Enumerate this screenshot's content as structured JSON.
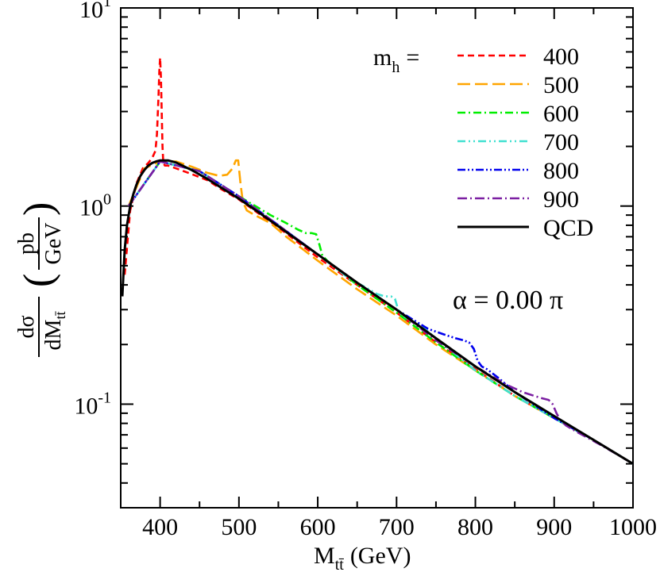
{
  "chart_data": {
    "type": "line",
    "title": "",
    "xlabel": {
      "main": "M",
      "sub": "tt̄",
      "unit": "(GeV)"
    },
    "ylabel": {
      "frac_num": "dσ",
      "frac_den_main": "dM",
      "frac_den_sub": "tt̄",
      "unit_num": "pb",
      "unit_den": "GeV"
    },
    "xlim": [
      350,
      1000
    ],
    "ylim": [
      0.03,
      10
    ],
    "yscale": "log",
    "grid": false,
    "xticks": [
      400,
      500,
      600,
      700,
      800,
      900,
      1000
    ],
    "xtick_labels": [
      "400",
      "500",
      "600",
      "700",
      "800",
      "900",
      "1000"
    ],
    "yticks": [
      {
        "value": 10,
        "base": "10",
        "exp": "1"
      },
      {
        "value": 1,
        "base": "10",
        "exp": "0"
      },
      {
        "value": 0.1,
        "base": "10",
        "exp": "-1"
      }
    ],
    "legend": {
      "placement": "top-right",
      "title_main": "m",
      "title_sub": "h",
      "title_suffix": "="
    },
    "annotation": "α = 0.00 π",
    "series": [
      {
        "name": "400",
        "color": "#ff0000",
        "dash": "8,5",
        "x": [
          355,
          362,
          370,
          378,
          385,
          390,
          394,
          396,
          398,
          399,
          400,
          401,
          402,
          403,
          404,
          406,
          410,
          420,
          440,
          460,
          480,
          500,
          550,
          600,
          650,
          700,
          750,
          800,
          850,
          900,
          950,
          1000
        ],
        "y": [
          0.45,
          0.95,
          1.3,
          1.55,
          1.65,
          1.75,
          1.9,
          2.3,
          3.6,
          4.8,
          5.6,
          4.5,
          3.0,
          2.0,
          1.65,
          1.6,
          1.6,
          1.55,
          1.45,
          1.35,
          1.2,
          1.08,
          0.78,
          0.55,
          0.4,
          0.29,
          0.205,
          0.15,
          0.11,
          0.085,
          0.066,
          0.05
        ]
      },
      {
        "name": "500",
        "color": "#ffa500",
        "dash": "16,6",
        "x": [
          360,
          380,
          400,
          420,
          440,
          460,
          475,
          485,
          492,
          496,
          499,
          502,
          505,
          510,
          520,
          540,
          560,
          580,
          600,
          650,
          700,
          750,
          800,
          850,
          900,
          950,
          1000
        ],
        "y": [
          1.0,
          1.55,
          1.68,
          1.68,
          1.58,
          1.47,
          1.42,
          1.44,
          1.55,
          1.7,
          1.7,
          1.3,
          1.05,
          0.95,
          0.9,
          0.82,
          0.7,
          0.61,
          0.53,
          0.38,
          0.28,
          0.2,
          0.148,
          0.11,
          0.085,
          0.066,
          0.05
        ]
      },
      {
        "name": "600",
        "color": "#00ee00",
        "dash": "10,4,2,4",
        "x": [
          360,
          400,
          450,
          500,
          540,
          560,
          575,
          585,
          592,
          598,
          602,
          606,
          612,
          620,
          650,
          700,
          750,
          800,
          850,
          900,
          950,
          1000
        ],
        "y": [
          1.0,
          1.68,
          1.5,
          1.12,
          0.9,
          0.82,
          0.76,
          0.73,
          0.73,
          0.72,
          0.64,
          0.56,
          0.53,
          0.5,
          0.4,
          0.29,
          0.205,
          0.148,
          0.11,
          0.085,
          0.066,
          0.05
        ]
      },
      {
        "name": "700",
        "color": "#40e0d0",
        "dash": "10,4,2,4,2,4",
        "x": [
          360,
          400,
          450,
          500,
          550,
          600,
          640,
          660,
          675,
          685,
          693,
          698,
          702,
          707,
          715,
          730,
          760,
          800,
          850,
          900,
          950,
          1000
        ],
        "y": [
          1.0,
          1.68,
          1.5,
          1.12,
          0.8,
          0.57,
          0.43,
          0.39,
          0.36,
          0.35,
          0.35,
          0.34,
          0.3,
          0.28,
          0.27,
          0.25,
          0.2,
          0.148,
          0.11,
          0.085,
          0.066,
          0.05
        ]
      },
      {
        "name": "800",
        "color": "#0000ee",
        "dash": "10,3,2,3,2,3",
        "x": [
          360,
          400,
          450,
          500,
          550,
          600,
          650,
          700,
          740,
          760,
          775,
          785,
          792,
          798,
          803,
          808,
          815,
          830,
          850,
          900,
          950,
          1000
        ],
        "y": [
          1.0,
          1.68,
          1.5,
          1.12,
          0.8,
          0.57,
          0.41,
          0.3,
          0.24,
          0.225,
          0.215,
          0.21,
          0.205,
          0.19,
          0.165,
          0.155,
          0.15,
          0.135,
          0.115,
          0.085,
          0.066,
          0.05
        ]
      },
      {
        "name": "900",
        "color": "#7b1fa2",
        "dash": "12,4,2,4",
        "x": [
          360,
          400,
          450,
          500,
          550,
          600,
          650,
          700,
          750,
          800,
          840,
          860,
          875,
          885,
          893,
          898,
          903,
          908,
          915,
          930,
          960,
          1000
        ],
        "y": [
          1.0,
          1.68,
          1.5,
          1.12,
          0.8,
          0.57,
          0.41,
          0.3,
          0.21,
          0.155,
          0.125,
          0.115,
          0.11,
          0.107,
          0.105,
          0.1,
          0.09,
          0.083,
          0.078,
          0.072,
          0.062,
          0.05
        ]
      },
      {
        "name": "QCD",
        "color": "#000000",
        "dash": "",
        "x": [
          352,
          355,
          358,
          362,
          366,
          370,
          375,
          380,
          385,
          390,
          395,
          400,
          405,
          410,
          420,
          440,
          460,
          480,
          500,
          525,
          550,
          575,
          600,
          650,
          700,
          750,
          800,
          850,
          900,
          950,
          1000
        ],
        "y": [
          0.35,
          0.6,
          0.8,
          1.0,
          1.15,
          1.28,
          1.42,
          1.52,
          1.6,
          1.65,
          1.68,
          1.7,
          1.7,
          1.7,
          1.66,
          1.52,
          1.37,
          1.22,
          1.09,
          0.93,
          0.79,
          0.67,
          0.57,
          0.41,
          0.3,
          0.215,
          0.155,
          0.115,
          0.087,
          0.066,
          0.05
        ]
      }
    ]
  }
}
